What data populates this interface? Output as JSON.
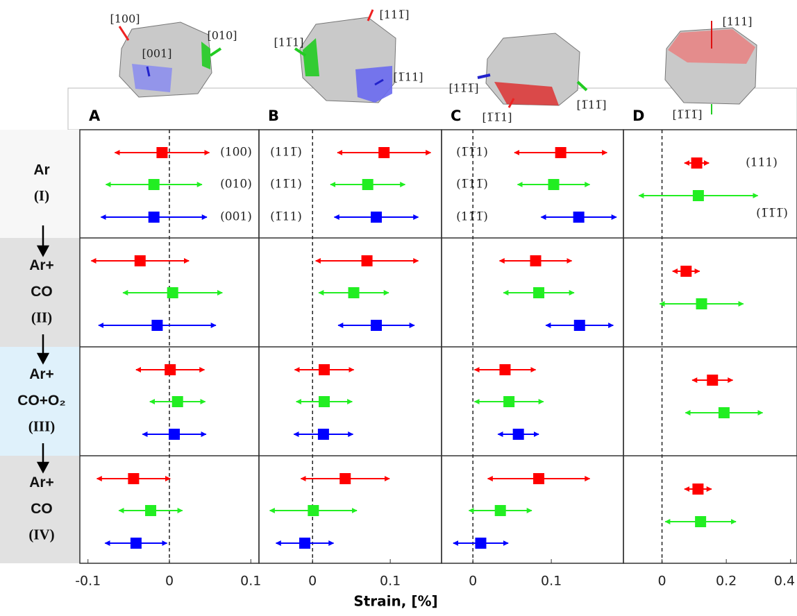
{
  "chart_data": [
    {
      "type": "errorbar",
      "title": "A",
      "xlim": [
        -0.11,
        0.11
      ],
      "xticks": [
        -0.1,
        0,
        0.1
      ],
      "directions": [
        "[100]",
        "[010]",
        "[001]"
      ],
      "series": [
        {
          "name": "(100)",
          "color": "#ff0000",
          "values": [
            -0.009,
            -0.036,
            0.001,
            -0.044
          ],
          "errors": [
            0.058,
            0.06,
            0.042,
            0.045
          ]
        },
        {
          "name": "(010)",
          "color": "#22ee22",
          "values": [
            -0.019,
            0.004,
            0.01,
            -0.023
          ],
          "errors": [
            0.059,
            0.061,
            0.034,
            0.039
          ]
        },
        {
          "name": "(001)",
          "color": "#0000ff",
          "values": [
            -0.019,
            -0.015,
            0.006,
            -0.041
          ],
          "errors": [
            0.065,
            0.072,
            0.039,
            0.038
          ]
        }
      ]
    },
    {
      "type": "errorbar",
      "title": "B",
      "xlim": [
        -0.069,
        0.166
      ],
      "xticks": [
        0,
        0.1
      ],
      "directions": [
        "[111̅]",
        "[11̅1]",
        "[1̅11]"
      ],
      "series": [
        {
          "name": "(111̅)",
          "color": "#ff0000",
          "values": [
            0.092,
            0.07,
            0.015,
            0.042
          ],
          "errors": [
            0.06,
            0.066,
            0.038,
            0.057
          ]
        },
        {
          "name": "(11̅1)",
          "color": "#22ee22",
          "values": [
            0.071,
            0.053,
            0.015,
            0.001
          ],
          "errors": [
            0.048,
            0.045,
            0.036,
            0.056
          ]
        },
        {
          "name": "(1̅11)",
          "color": "#0000ff",
          "values": [
            0.082,
            0.082,
            0.014,
            -0.01
          ],
          "errors": [
            0.054,
            0.049,
            0.038,
            0.037
          ]
        }
      ]
    },
    {
      "type": "errorbar",
      "title": "C",
      "xlim": [
        -0.04,
        0.192
      ],
      "xticks": [
        0,
        0.1
      ],
      "directions": [
        "[11̅1̅]",
        "[1̅11̅]",
        "[1̅1̅1]"
      ],
      "series": [
        {
          "name": "(1̅1̅1)",
          "color": "#ff0000",
          "values": [
            0.112,
            0.08,
            0.041,
            0.084
          ],
          "errors": [
            0.059,
            0.046,
            0.039,
            0.065
          ]
        },
        {
          "name": "(1̅11̅)",
          "color": "#22ee22",
          "values": [
            0.103,
            0.084,
            0.046,
            0.035
          ],
          "errors": [
            0.046,
            0.045,
            0.044,
            0.04
          ]
        },
        {
          "name": "(11̅1̅)",
          "color": "#0000ff",
          "values": [
            0.135,
            0.136,
            0.058,
            0.01
          ],
          "errors": [
            0.048,
            0.043,
            0.026,
            0.035
          ]
        }
      ]
    },
    {
      "type": "errorbar",
      "title": "D",
      "xlim": [
        -0.12,
        0.42
      ],
      "xticks": [
        0,
        0.2,
        0.4
      ],
      "directions": [
        "[111]",
        "[1̅1̅1̅]"
      ],
      "series": [
        {
          "name": "(111)",
          "color": "#ff0000",
          "values": [
            0.108,
            0.075,
            0.157,
            0.112
          ],
          "errors": [
            0.038,
            0.042,
            0.063,
            0.042
          ]
        },
        {
          "name": "(1̅1̅1̅)",
          "color": "#22ee22",
          "values": [
            0.113,
            0.123,
            0.193,
            0.12
          ],
          "errors": [
            0.185,
            0.13,
            0.12,
            0.11
          ]
        }
      ]
    }
  ],
  "rows": [
    [
      "Ar",
      "(I)"
    ],
    [
      "Ar+",
      "CO",
      "(II)"
    ],
    [
      "Ar+",
      "CO+O₂",
      "(III)"
    ],
    [
      "Ar+",
      "CO",
      "(IV)"
    ]
  ],
  "x_label": "Strain, [%]"
}
